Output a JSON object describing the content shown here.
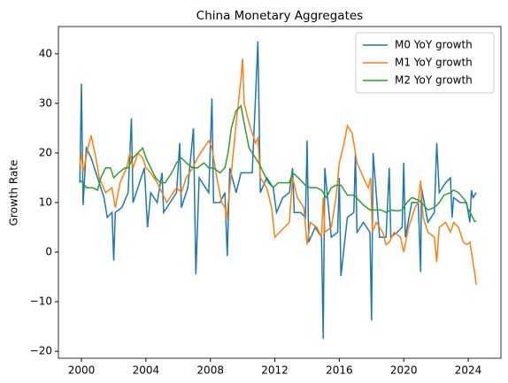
{
  "chart_data": {
    "type": "line",
    "title": "China Monetary Aggregates",
    "y_label": "Growth Rate",
    "xlim": [
      1998.57,
      2026.03
    ],
    "xticks": [
      2000,
      2004,
      2008,
      2012,
      2016,
      2020,
      2024
    ],
    "ylim": [
      -21.4,
      45.5
    ],
    "yticks": [
      {
        "value": -20,
        "label": "−20"
      },
      {
        "value": -10,
        "label": "−10"
      },
      0,
      10,
      20,
      30,
      40
    ],
    "grid": false,
    "legend": "upper right",
    "series": [
      {
        "name": "M0 YoY growth",
        "color": "#1f77b4",
        "x": [
          1999.9,
          2000.0,
          2000.1,
          2000.3,
          2000.6,
          2000.9,
          2001.1,
          2001.4,
          2001.6,
          2001.9,
          2002.0,
          2002.1,
          2002.5,
          2002.9,
          2003.1,
          2003.2,
          2003.6,
          2003.9,
          2004.1,
          2004.3,
          2004.7,
          2005.0,
          2005.1,
          2005.5,
          2005.9,
          2006.1,
          2006.2,
          2006.6,
          2006.95,
          2007.1,
          2007.3,
          2007.7,
          2007.9,
          2008.1,
          2008.2,
          2008.6,
          2008.9,
          2009.05,
          2009.2,
          2009.6,
          2009.9,
          2010.1,
          2010.6,
          2010.95,
          2011.1,
          2011.5,
          2011.9,
          2012.1,
          2012.5,
          2012.9,
          2013.1,
          2013.2,
          2013.6,
          2013.9,
          2014.0,
          2014.1,
          2014.5,
          2014.9,
          2015.0,
          2015.1,
          2015.5,
          2015.9,
          2016.0,
          2016.1,
          2016.5,
          2016.9,
          2017.0,
          2017.1,
          2017.5,
          2017.9,
          2018.0,
          2018.1,
          2018.5,
          2018.9,
          2019.1,
          2019.2,
          2019.6,
          2019.9,
          2020.0,
          2020.1,
          2020.5,
          2020.9,
          2021.05,
          2021.1,
          2021.5,
          2021.9,
          2022.05,
          2022.2,
          2022.6,
          2022.9,
          2023.0,
          2023.1,
          2023.5,
          2023.9,
          2024.1,
          2024.2,
          2024.3,
          2024.5
        ],
        "values": [
          14,
          34,
          9.5,
          21,
          19,
          16,
          14,
          11,
          7,
          8,
          -1.7,
          8,
          9,
          12,
          27,
          10,
          14,
          17,
          5,
          12,
          10,
          16,
          8,
          10,
          12,
          22,
          9,
          13,
          25,
          -4.5,
          15,
          13,
          12,
          31,
          10,
          10,
          12,
          -0.8,
          17,
          12,
          16,
          16,
          16,
          42.5,
          12,
          15,
          13,
          8,
          11,
          12,
          17,
          8,
          8,
          7,
          22.5,
          2,
          5,
          3,
          -17.5,
          17,
          3,
          4,
          15,
          -4.8,
          7,
          8,
          20,
          4,
          6,
          4,
          -13.8,
          20,
          3,
          3,
          17,
          3,
          4,
          5,
          18,
          3,
          10,
          10,
          -4,
          13,
          6,
          8,
          22,
          12,
          14,
          15,
          7,
          11,
          10,
          10,
          6,
          12.5,
          11,
          12
        ]
      },
      {
        "name": "M1 YoY growth",
        "color": "#ff7f0e",
        "x": [
          1999.9,
          2000.0,
          2000.1,
          2000.4,
          2000.6,
          2000.9,
          2001.1,
          2001.5,
          2001.9,
          2002.1,
          2002.4,
          2002.8,
          2003.0,
          2003.2,
          2003.5,
          2003.8,
          2004.0,
          2004.3,
          2004.7,
          2005.0,
          2005.3,
          2005.7,
          2005.9,
          2006.2,
          2006.5,
          2006.9,
          2007.2,
          2007.6,
          2007.9,
          2008.1,
          2008.4,
          2008.7,
          2008.9,
          2009.0,
          2009.3,
          2009.6,
          2009.8,
          2009.9,
          2010.0,
          2010.1,
          2010.4,
          2010.8,
          2010.95,
          2011.1,
          2011.5,
          2011.8,
          2012.0,
          2012.3,
          2012.6,
          2012.9,
          2013.1,
          2013.4,
          2013.8,
          2014.0,
          2014.2,
          2014.6,
          2014.9,
          2015.0,
          2015.1,
          2015.5,
          2015.8,
          2016.0,
          2016.3,
          2016.5,
          2016.8,
          2017.1,
          2017.5,
          2017.8,
          2017.95,
          2018.05,
          2018.3,
          2018.7,
          2018.9,
          2019.1,
          2019.4,
          2019.8,
          2020.0,
          2020.3,
          2020.7,
          2020.9,
          2021.05,
          2021.2,
          2021.5,
          2021.9,
          2022.05,
          2022.2,
          2022.6,
          2022.9,
          2023.1,
          2023.4,
          2023.7,
          2023.9,
          2024.1,
          2024.3,
          2024.4,
          2024.5
        ],
        "values": [
          17.5,
          20,
          16,
          21,
          23.5,
          19,
          15,
          12,
          13,
          9,
          14,
          17,
          20,
          17,
          20,
          19,
          17,
          16,
          14,
          12,
          10,
          12,
          13,
          12,
          15,
          17,
          19,
          21,
          22.5,
          21,
          15,
          10,
          9,
          6.5,
          16,
          26,
          32,
          35,
          39,
          30,
          26,
          22,
          23,
          15,
          13,
          9,
          3,
          4,
          5,
          6,
          15,
          11,
          9,
          1.5,
          6,
          5,
          3,
          11,
          4,
          5,
          11,
          18,
          22,
          25.5,
          24,
          18,
          15,
          13,
          15,
          4,
          6,
          4,
          1.5,
          2,
          4,
          3,
          0,
          5,
          9,
          10,
          14.5,
          7,
          4,
          3,
          -2,
          5,
          6,
          4,
          6,
          5,
          2,
          1.5,
          2,
          -2,
          -4,
          -6.6
        ]
      },
      {
        "name": "M2 YoY growth",
        "color": "#2ca02c",
        "x": [
          1999.9,
          2000.1,
          2000.3,
          2000.7,
          2001.0,
          2001.2,
          2001.5,
          2001.8,
          2002.0,
          2002.3,
          2002.7,
          2002.9,
          2003.2,
          2003.5,
          2003.8,
          2004.0,
          2004.3,
          2004.6,
          2004.9,
          2005.2,
          2005.6,
          2005.9,
          2006.2,
          2006.5,
          2006.9,
          2007.2,
          2007.6,
          2007.9,
          2008.2,
          2008.6,
          2008.9,
          2009.1,
          2009.3,
          2009.6,
          2009.9,
          2010.1,
          2010.4,
          2010.8,
          2011.0,
          2011.3,
          2011.6,
          2011.9,
          2012.2,
          2012.5,
          2012.9,
          2013.1,
          2013.3,
          2013.6,
          2013.9,
          2014.2,
          2014.6,
          2014.9,
          2015.2,
          2015.5,
          2015.8,
          2016.1,
          2016.5,
          2016.9,
          2017.2,
          2017.5,
          2017.9,
          2018.2,
          2018.6,
          2018.9,
          2019.2,
          2019.6,
          2019.9,
          2020.2,
          2020.5,
          2020.9,
          2021.1,
          2021.5,
          2021.9,
          2022.2,
          2022.5,
          2022.9,
          2023.1,
          2023.4,
          2023.8,
          2024.0,
          2024.2,
          2024.4,
          2024.5
        ],
        "values": [
          14.5,
          14,
          13,
          13,
          12.5,
          15,
          17,
          17,
          15,
          16,
          17,
          17,
          19,
          20,
          21,
          19,
          17,
          15,
          14,
          14,
          16,
          18,
          19,
          18,
          17,
          17,
          18,
          17,
          17,
          16,
          17,
          20,
          25,
          28.5,
          29.5,
          26,
          21,
          19,
          18,
          16,
          14,
          13,
          14,
          14,
          14,
          16,
          15.5,
          14.5,
          13.5,
          13,
          13,
          12.5,
          11,
          13,
          13.5,
          13.5,
          11.5,
          11.5,
          10.5,
          9.5,
          8.5,
          8.5,
          8.5,
          8,
          8.5,
          8.3,
          8.5,
          10,
          11,
          10.5,
          10,
          8.5,
          9,
          10,
          11.5,
          12,
          12.5,
          12,
          10.5,
          8.7,
          7.5,
          6.2,
          6.3
        ]
      }
    ]
  }
}
